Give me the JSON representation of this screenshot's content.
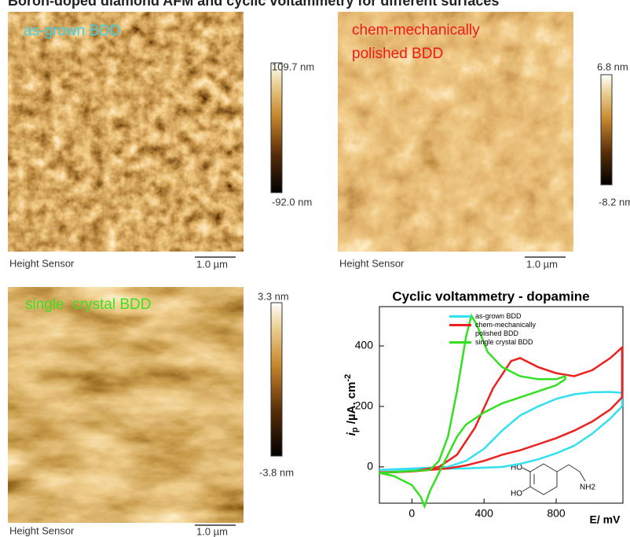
{
  "title": "Boron-doped diamond AFM and cyclic voltammetry for different surfaces",
  "panels": [
    {
      "label": "as-grown BDD",
      "scale_max": "109.7 nm",
      "scale_min": "-92.0 nm",
      "sensor": "Height Sensor",
      "scale_bar": "1.0 µm"
    },
    {
      "label": "chem-mechanically polished BDD",
      "scale_max": "6.8 nm",
      "scale_min": "-8.2 nm",
      "sensor": "Height Sensor",
      "scale_bar": "1.0 µm"
    },
    {
      "label": "single  crystal BDD",
      "scale_max": "3.3 nm",
      "scale_min": "-3.8 nm",
      "sensor": "Height Sensor",
      "scale_bar": "1.0 µm"
    }
  ],
  "chart_data": {
    "type": "line",
    "title": "Cyclic voltammetry - dopamine",
    "xlabel": "E/ mV",
    "ylabel": {
      "main": "i",
      "sub": "p",
      "unit": " /µA. cm",
      "sup": "-2"
    },
    "xlim": [
      -180,
      1170
    ],
    "ylim": [
      -120,
      530
    ],
    "xticks": [
      0,
      400,
      800
    ],
    "yticks": [
      0,
      200,
      400
    ],
    "legend": "upper right",
    "molecule_labels": [
      "HO",
      "HO",
      "NH2"
    ],
    "series": [
      {
        "name": "as-grown BDD",
        "color": "#33e0f0",
        "x": [
          -180,
          200,
          300,
          400,
          500,
          600,
          700,
          800,
          900,
          1000,
          1100,
          1165,
          1165,
          1100,
          1000,
          900,
          800,
          700,
          600,
          500,
          300,
          0,
          -180
        ],
        "values": [
          -10,
          0,
          20,
          60,
          120,
          170,
          200,
          225,
          240,
          247,
          248,
          245,
          200,
          160,
          110,
          70,
          45,
          25,
          10,
          0,
          -5,
          -8,
          -10
        ]
      },
      {
        "name": "chem-mechanically polished BDD",
        "color": "#ee2020",
        "x": [
          -180,
          0,
          150,
          250,
          350,
          450,
          550,
          600,
          700,
          800,
          900,
          1000,
          1100,
          1165,
          1165,
          1100,
          1000,
          900,
          800,
          700,
          600,
          500,
          400,
          300,
          200,
          100,
          0,
          -180
        ],
        "values": [
          -20,
          -15,
          0,
          40,
          130,
          260,
          350,
          360,
          330,
          310,
          300,
          320,
          360,
          395,
          230,
          190,
          150,
          120,
          95,
          75,
          55,
          40,
          20,
          5,
          -5,
          -10,
          -15,
          -18
        ]
      },
      {
        "name": "single crystal BDD",
        "color": "#33e020",
        "x": [
          -180,
          100,
          150,
          200,
          250,
          300,
          330,
          360,
          420,
          500,
          600,
          700,
          800,
          850,
          850,
          800,
          700,
          600,
          500,
          400,
          300,
          250,
          200,
          150,
          100,
          70,
          50,
          0,
          -100,
          -180
        ],
        "values": [
          -20,
          -10,
          20,
          100,
          250,
          430,
          500,
          470,
          380,
          330,
          300,
          290,
          290,
          300,
          290,
          270,
          250,
          230,
          210,
          180,
          140,
          100,
          40,
          -20,
          -80,
          -130,
          -100,
          -60,
          -30,
          -20
        ]
      }
    ]
  }
}
